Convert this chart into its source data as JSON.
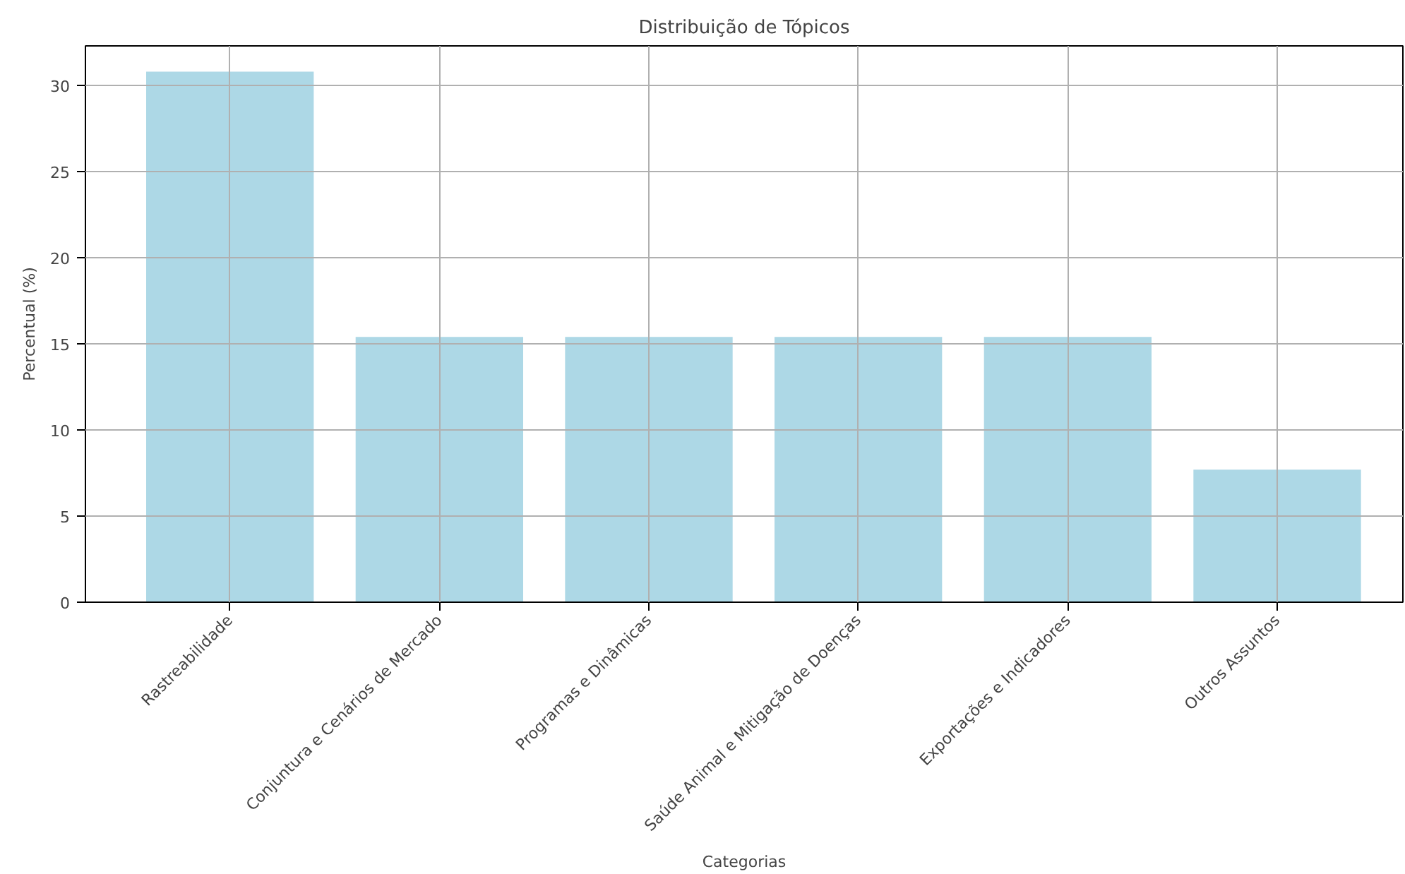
{
  "chart_data": {
    "type": "bar",
    "title": "Distribuição de Tópicos",
    "xlabel": "Categorias",
    "ylabel": "Percentual (%)",
    "categories": [
      "Rastreabilidade",
      "Conjuntura e Cenários de Mercado",
      "Programas e Dinâmicas",
      "Saúde Animal e Mitigação de Doenças",
      "Exportações e Indicadores",
      "Outros Assuntos"
    ],
    "values": [
      30.8,
      15.4,
      15.4,
      15.4,
      15.4,
      7.7
    ],
    "color": "#add8e6",
    "ylim": [
      0,
      32.3
    ],
    "yticks": [
      0,
      5,
      10,
      15,
      20,
      25,
      30
    ],
    "grid": true
  }
}
